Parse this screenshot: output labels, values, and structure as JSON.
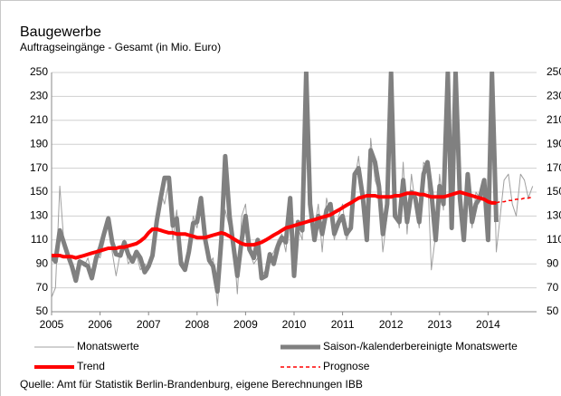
{
  "chart_data": {
    "type": "line",
    "title": "Baugewerbe",
    "subtitle": "Auftragseingänge - Gesamt (in Mio. Euro)",
    "source": "Quelle: Amt für Statistik Berlin-Brandenburg, eigene Berechnungen IBB",
    "x": [
      2005.0,
      2005.08,
      2005.17,
      2005.25,
      2005.33,
      2005.42,
      2005.5,
      2005.58,
      2005.67,
      2005.75,
      2005.83,
      2005.92,
      2006.0,
      2006.08,
      2006.17,
      2006.25,
      2006.33,
      2006.42,
      2006.5,
      2006.58,
      2006.67,
      2006.75,
      2006.83,
      2006.92,
      2007.0,
      2007.08,
      2007.17,
      2007.25,
      2007.33,
      2007.42,
      2007.5,
      2007.58,
      2007.67,
      2007.75,
      2007.83,
      2007.92,
      2008.0,
      2008.08,
      2008.17,
      2008.25,
      2008.33,
      2008.42,
      2008.5,
      2008.58,
      2008.67,
      2008.75,
      2008.83,
      2008.92,
      2009.0,
      2009.08,
      2009.17,
      2009.25,
      2009.33,
      2009.42,
      2009.5,
      2009.58,
      2009.67,
      2009.75,
      2009.83,
      2009.92,
      2010.0,
      2010.08,
      2010.17,
      2010.25,
      2010.33,
      2010.42,
      2010.5,
      2010.58,
      2010.67,
      2010.75,
      2010.83,
      2010.92,
      2011.0,
      2011.08,
      2011.17,
      2011.25,
      2011.33,
      2011.42,
      2011.5,
      2011.58,
      2011.67,
      2011.75,
      2011.83,
      2011.92,
      2012.0,
      2012.08,
      2012.17,
      2012.25,
      2012.33,
      2012.42,
      2012.5,
      2012.58,
      2012.67,
      2012.75,
      2012.83,
      2012.92,
      2013.0,
      2013.08,
      2013.17,
      2013.25,
      2013.33,
      2013.42,
      2013.5,
      2013.58,
      2013.67,
      2013.75,
      2013.83,
      2013.92,
      2014.0,
      2014.08,
      2014.17,
      2014.25,
      2014.33,
      2014.42,
      2014.5,
      2014.58,
      2014.67,
      2014.75,
      2014.83,
      2014.92
    ],
    "series": [
      {
        "name": "Monatswerte",
        "color": "#a0a0a0",
        "line_width": 1,
        "dashed": false,
        "values": [
          62,
          70,
          155,
          110,
          95,
          85,
          80,
          93,
          88,
          95,
          80,
          98,
          95,
          108,
          128,
          100,
          80,
          100,
          110,
          90,
          95,
          98,
          85,
          90,
          85,
          100,
          130,
          150,
          140,
          160,
          110,
          135,
          95,
          88,
          95,
          130,
          120,
          140,
          105,
          90,
          95,
          55,
          100,
          135,
          120,
          110,
          65,
          130,
          140,
          100,
          90,
          95,
          80,
          85,
          95,
          100,
          110,
          115,
          100,
          140,
          95,
          120,
          110,
          250,
          130,
          120,
          140,
          100,
          145,
          130,
          110,
          130,
          140,
          110,
          120,
          160,
          180,
          140,
          110,
          195,
          160,
          150,
          100,
          130,
          250,
          140,
          120,
          175,
          115,
          165,
          140,
          120,
          175,
          170,
          85,
          115,
          165,
          135,
          250,
          125,
          250,
          140,
          110,
          160,
          120,
          150,
          145,
          160,
          115,
          250,
          100,
          130,
          160,
          165,
          140,
          130,
          165,
          160,
          145,
          155
        ]
      },
      {
        "name": "Saison-/kalenderbereinigte Monatswerte",
        "color": "#808080",
        "line_width": 5,
        "dashed": false,
        "values": [
          97,
          92,
          118,
          108,
          98,
          88,
          76,
          92,
          90,
          88,
          78,
          95,
          103,
          115,
          128,
          108,
          98,
          97,
          108,
          98,
          92,
          100,
          95,
          83,
          88,
          97,
          126,
          145,
          162,
          162,
          122,
          128,
          90,
          85,
          100,
          124,
          125,
          145,
          110,
          93,
          88,
          67,
          110,
          180,
          130,
          105,
          80,
          110,
          130,
          102,
          95,
          110,
          78,
          80,
          98,
          90,
          105,
          112,
          108,
          145,
          80,
          125,
          118,
          250,
          140,
          110,
          130,
          115,
          135,
          140,
          115,
          125,
          130,
          115,
          120,
          165,
          170,
          145,
          110,
          185,
          175,
          155,
          115,
          140,
          250,
          130,
          125,
          160,
          125,
          150,
          145,
          125,
          165,
          175,
          150,
          110,
          155,
          140,
          250,
          120,
          250,
          145,
          110,
          165,
          125,
          140,
          145,
          160,
          110,
          250,
          125,
          null,
          null,
          null,
          null,
          null,
          null,
          null,
          null,
          null
        ]
      },
      {
        "name": "Trend",
        "color": "#ff0000",
        "line_width": 4,
        "dashed": false,
        "values": [
          97,
          97,
          97,
          96,
          96,
          96,
          95,
          96,
          97,
          98,
          99,
          100,
          101,
          102,
          103,
          103,
          103,
          104,
          104,
          105,
          106,
          107,
          109,
          112,
          116,
          119,
          119,
          118,
          117,
          116,
          116,
          115,
          115,
          115,
          114,
          113,
          112,
          112,
          112,
          113,
          114,
          115,
          116,
          115,
          113,
          111,
          109,
          107,
          106,
          106,
          106,
          107,
          108,
          110,
          112,
          114,
          116,
          118,
          120,
          121,
          122,
          123,
          124,
          125,
          126,
          127,
          128,
          129,
          130,
          131,
          133,
          135,
          137,
          139,
          141,
          143,
          145,
          146,
          147,
          147,
          147,
          146,
          146,
          146,
          146,
          147,
          147,
          148,
          149,
          149,
          149,
          148,
          148,
          147,
          146,
          146,
          146,
          146,
          147,
          148,
          149,
          150,
          149,
          148,
          147,
          146,
          145,
          144,
          142,
          141,
          141,
          null,
          null,
          null,
          null,
          null,
          null,
          null,
          null,
          null
        ]
      },
      {
        "name": "Prognose",
        "color": "#ff0000",
        "line_width": 1.5,
        "dashed": true,
        "values": [
          null,
          null,
          null,
          null,
          null,
          null,
          null,
          null,
          null,
          null,
          null,
          null,
          null,
          null,
          null,
          null,
          null,
          null,
          null,
          null,
          null,
          null,
          null,
          null,
          null,
          null,
          null,
          null,
          null,
          null,
          null,
          null,
          null,
          null,
          null,
          null,
          null,
          null,
          null,
          null,
          null,
          null,
          null,
          null,
          null,
          null,
          null,
          null,
          null,
          null,
          null,
          null,
          null,
          null,
          null,
          null,
          null,
          null,
          null,
          null,
          null,
          null,
          null,
          null,
          null,
          null,
          null,
          null,
          null,
          null,
          null,
          null,
          null,
          null,
          null,
          null,
          null,
          null,
          null,
          null,
          null,
          null,
          null,
          null,
          null,
          null,
          null,
          null,
          null,
          null,
          null,
          null,
          null,
          null,
          null,
          null,
          null,
          null,
          null,
          null,
          null,
          null,
          null,
          null,
          null,
          null,
          null,
          null,
          null,
          null,
          141,
          142,
          142,
          143,
          143,
          144,
          144,
          145,
          145,
          146
        ]
      }
    ],
    "xlim": [
      2005,
      2015
    ],
    "xticks": [
      2005,
      2006,
      2007,
      2008,
      2009,
      2010,
      2011,
      2012,
      2013,
      2014
    ],
    "ylim": [
      50,
      250
    ],
    "yticks": [
      50,
      70,
      90,
      110,
      130,
      150,
      170,
      190,
      210,
      230,
      250
    ],
    "y2lim": [
      50,
      250
    ],
    "y2ticks": [
      50,
      70,
      90,
      110,
      130,
      150,
      170,
      190,
      210,
      230,
      250
    ],
    "grid": true
  }
}
